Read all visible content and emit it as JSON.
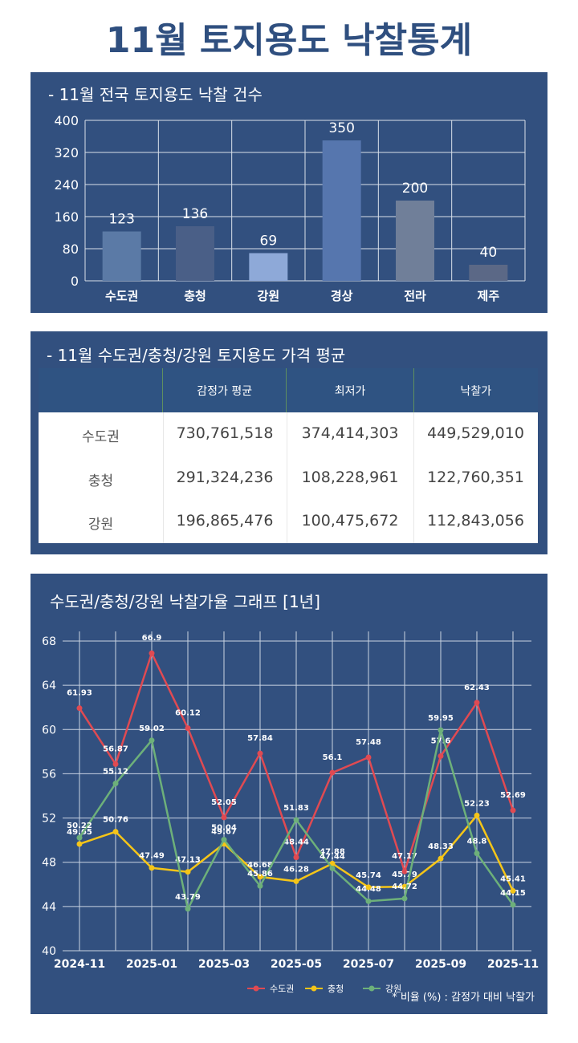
{
  "page_title": "11월 토지용도 낙찰통계",
  "section1": {
    "title": "- 11월 전국 토지용도 낙찰 건수"
  },
  "section2": {
    "title": "- 11월 수도권/충청/강원 토지용도 가격 평균",
    "headers": [
      "",
      "감정가 평균",
      "최저가",
      "낙찰가"
    ],
    "rows": [
      {
        "region": "수도권",
        "appraisal": "730,761,518",
        "minimum": "374,414,303",
        "winning": "449,529,010"
      },
      {
        "region": "충청",
        "appraisal": "291,324,236",
        "minimum": "108,228,961",
        "winning": "122,760,351"
      },
      {
        "region": "강원",
        "appraisal": "196,865,476",
        "minimum": "100,475,672",
        "winning": "112,843,056"
      }
    ]
  },
  "section3": {
    "title": "수도권/충청/강원 낙찰가율 그래프 [1년]",
    "footnote": "* 비율 (%) : 감정가 대비 낙찰가"
  },
  "chart_data": [
    {
      "type": "bar",
      "categories": [
        "수도권",
        "충청",
        "강원",
        "경상",
        "전라",
        "제주"
      ],
      "values": [
        123,
        136,
        69,
        350,
        200,
        40
      ],
      "ylim": [
        0,
        400
      ],
      "yticks": [
        0,
        80,
        160,
        240,
        320,
        400
      ],
      "colors": [
        "#5b7aa6",
        "#4a5f87",
        "#8ea9d8",
        "#5676ae",
        "#707f99",
        "#5b6886"
      ],
      "grid": true
    },
    {
      "type": "line",
      "x": [
        "2024-11",
        "2024-12",
        "2025-01",
        "2025-02",
        "2025-03",
        "2025-04",
        "2025-05",
        "2025-06",
        "2025-07",
        "2025-08",
        "2025-09",
        "2025-10",
        "2025-11"
      ],
      "xticks": [
        "2024-11",
        "2025-01",
        "2025-03",
        "2025-05",
        "2025-07",
        "2025-09",
        "2025-11"
      ],
      "ylim": [
        40,
        68
      ],
      "yticks": [
        40,
        44,
        48,
        52,
        56,
        60,
        64,
        68
      ],
      "legend": "bottom-right",
      "grid": true,
      "series": [
        {
          "name": "수도권",
          "color": "#e04a52",
          "values": [
            61.93,
            56.87,
            66.9,
            60.12,
            52.05,
            57.84,
            48.44,
            56.1,
            57.48,
            47.17,
            57.6,
            62.43,
            52.69
          ]
        },
        {
          "name": "충청",
          "color": "#f5c518",
          "values": [
            49.65,
            50.76,
            47.49,
            47.13,
            49.67,
            46.68,
            46.28,
            47.88,
            45.74,
            45.79,
            48.33,
            52.23,
            45.41
          ]
        },
        {
          "name": "강원",
          "color": "#6db07a",
          "values": [
            50.22,
            55.12,
            59.02,
            43.79,
            50.04,
            45.86,
            51.83,
            47.44,
            44.48,
            44.72,
            59.95,
            48.8,
            44.15
          ]
        }
      ]
    }
  ]
}
